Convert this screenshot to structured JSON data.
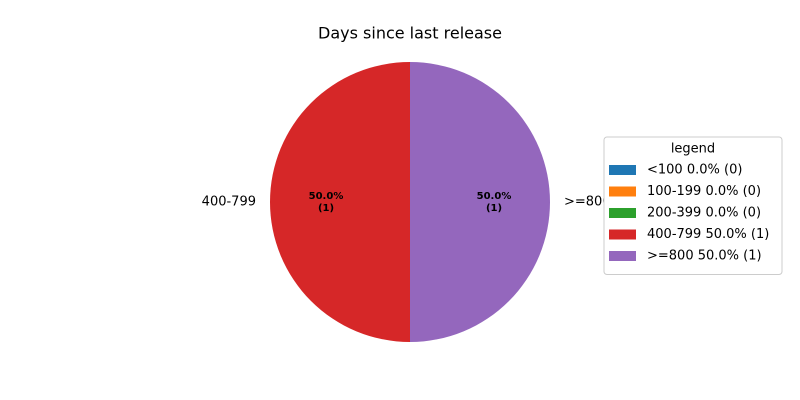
{
  "chart_data": {
    "type": "pie",
    "title": "Days since last release",
    "categories": [
      null,
      null,
      null,
      "400-799",
      ">=800"
    ],
    "values": [
      0,
      0,
      0,
      1,
      1
    ],
    "value_labels": [
      null,
      null,
      null,
      [
        "50.0%",
        "(1)"
      ],
      [
        "50.0%",
        "(1)"
      ]
    ],
    "colors": [
      "#1f77b4",
      "#ff7f0e",
      "#2ca02c",
      "#d62728",
      "#9467bd"
    ],
    "legend_title": "legend",
    "legend": [
      "<100 0.0% (0)",
      "100-199 0.0% (0)",
      "200-399 0.0% (0)",
      "400-799 50.0% (1)",
      ">=800 50.0% (1)"
    ],
    "legend_position": "right"
  }
}
